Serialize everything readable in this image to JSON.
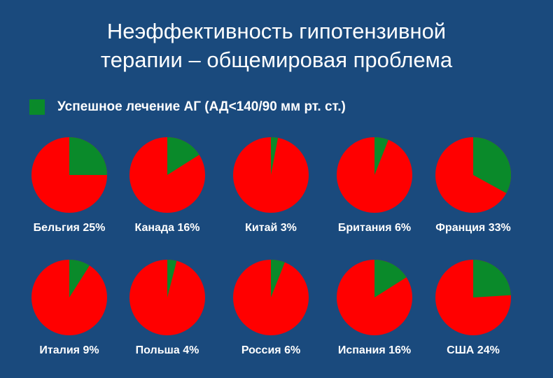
{
  "title_lines": [
    "Неэффективность гипотензивной",
    "терапии – общемировая проблема"
  ],
  "colors": {
    "background": "#1a4a7d",
    "success": "#0a8a2a",
    "rest": "#ff0000",
    "text": "#ffffff"
  },
  "chart_data": {
    "type": "pie",
    "legend": {
      "label": "Успешное лечение АГ (АД<140/90 мм рт. ст.)",
      "placement": "top-left"
    },
    "unit": "%",
    "items": [
      {
        "label": "Бельгия 25%",
        "country": "Бельгия",
        "value": 25
      },
      {
        "label": "Канада 16%",
        "country": "Канада",
        "value": 16
      },
      {
        "label": "Китай 3%",
        "country": "Китай",
        "value": 3
      },
      {
        "label": "Британия 6%",
        "country": "Британия",
        "value": 6
      },
      {
        "label": "Франция 33%",
        "country": "Франция",
        "value": 33
      },
      {
        "label": "Италия 9%",
        "country": "Италия",
        "value": 9
      },
      {
        "label": "Польша 4%",
        "country": "Польша",
        "value": 4
      },
      {
        "label": "Россия 6%",
        "country": "Россия",
        "value": 6
      },
      {
        "label": "Испания 16%",
        "country": "Испания",
        "value": 16
      },
      {
        "label": "США 24%",
        "country": "США",
        "value": 24
      }
    ]
  }
}
